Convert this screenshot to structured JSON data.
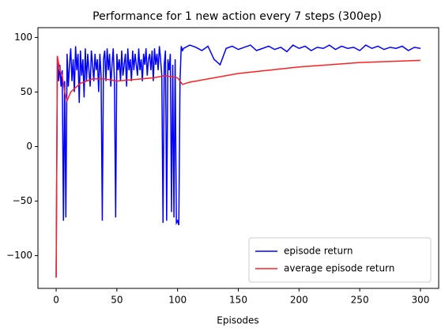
{
  "chart_data": {
    "type": "line",
    "title": "Performance for 1 new action every 7 steps (300ep)",
    "x_label": "Episodes",
    "xlim": [
      -15,
      315
    ],
    "ylim": [
      -130,
      109
    ],
    "xticks": [
      0,
      50,
      100,
      150,
      200,
      250,
      300
    ],
    "yticks": [
      {
        "value": -100,
        "label": "−100"
      },
      {
        "value": -50,
        "label": "−50"
      },
      0,
      50,
      100
    ],
    "legend": "lower right",
    "series": [
      {
        "name": "episode return",
        "color": "#0000ff",
        "x": [
          0,
          1,
          2,
          3,
          4,
          5,
          6,
          7,
          8,
          9,
          10,
          11,
          12,
          13,
          14,
          15,
          16,
          17,
          18,
          19,
          20,
          21,
          22,
          23,
          24,
          25,
          26,
          27,
          28,
          29,
          30,
          31,
          32,
          33,
          34,
          35,
          36,
          37,
          38,
          39,
          40,
          41,
          42,
          43,
          44,
          45,
          46,
          47,
          48,
          49,
          50,
          51,
          52,
          53,
          54,
          55,
          56,
          57,
          58,
          59,
          60,
          61,
          62,
          63,
          64,
          65,
          66,
          67,
          68,
          69,
          70,
          71,
          72,
          73,
          74,
          75,
          76,
          77,
          78,
          79,
          80,
          81,
          82,
          83,
          84,
          85,
          86,
          87,
          88,
          89,
          90,
          91,
          92,
          93,
          94,
          95,
          96,
          97,
          98,
          99,
          100,
          101,
          102,
          103,
          104,
          105,
          110,
          115,
          120,
          125,
          130,
          135,
          140,
          145,
          150,
          155,
          160,
          165,
          170,
          175,
          180,
          185,
          190,
          195,
          200,
          205,
          210,
          215,
          220,
          225,
          230,
          235,
          240,
          245,
          250,
          255,
          260,
          265,
          270,
          275,
          280,
          285,
          290,
          295,
          300
        ],
        "values": [
          -120,
          83,
          60,
          75,
          55,
          70,
          -68,
          60,
          -65,
          85,
          55,
          75,
          90,
          60,
          80,
          50,
          92,
          70,
          85,
          40,
          88,
          65,
          80,
          45,
          90,
          60,
          85,
          70,
          55,
          88,
          75,
          60,
          85,
          70,
          80,
          50,
          85,
          65,
          -68,
          80,
          88,
          60,
          90,
          70,
          85,
          55,
          75,
          90,
          60,
          -65,
          85,
          70,
          80,
          60,
          88,
          65,
          75,
          85,
          55,
          90,
          70,
          80,
          60,
          88,
          70,
          85,
          75,
          65,
          90,
          70,
          80,
          60,
          85,
          75,
          90,
          65,
          80,
          85,
          70,
          88,
          60,
          90,
          75,
          85,
          70,
          92,
          80,
          65,
          -70,
          75,
          88,
          -68,
          80,
          70,
          85,
          -60,
          75,
          -65,
          80,
          -70,
          -68,
          -72,
          60,
          92,
          88,
          90,
          93,
          91,
          88,
          92,
          80,
          75,
          90,
          92,
          89,
          91,
          93,
          88,
          90,
          92,
          89,
          91,
          87,
          93,
          90,
          92,
          88,
          91,
          90,
          93,
          89,
          92,
          90,
          91,
          88,
          93,
          90,
          92,
          89,
          91,
          90,
          92,
          88,
          91,
          90
        ]
      },
      {
        "name": "average episode return",
        "color": "#ff2020",
        "x": [
          0,
          1,
          3,
          5,
          7,
          9,
          12,
          20,
          30,
          40,
          50,
          60,
          70,
          80,
          90,
          100,
          104,
          110,
          130,
          150,
          175,
          200,
          225,
          250,
          275,
          300
        ],
        "values": [
          -120,
          83,
          70,
          65,
          50,
          42,
          50,
          58,
          62,
          62,
          60,
          61,
          62,
          63,
          65,
          63,
          57,
          59,
          63,
          67,
          70,
          73,
          75,
          77,
          78,
          79
        ]
      }
    ]
  }
}
